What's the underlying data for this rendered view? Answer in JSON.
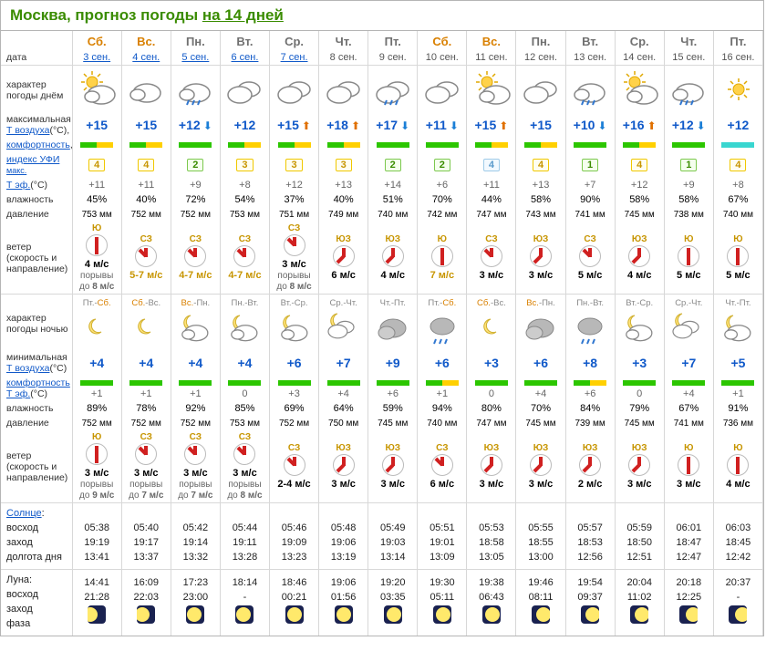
{
  "title_prefix": "Москва, прогноз погоды ",
  "title_link": "на 14 дней",
  "row_labels": {
    "date": "дата",
    "day_char": "характер погоды днём",
    "tmax1": "максимальная",
    "tmax2": "Т воздуха",
    "tmax3": "(°C),",
    "comfort": "комфортность",
    "uv1": "индекс УФИ",
    "uv2": "макс.",
    "teff": "Т эф.",
    "teff2": "(°C)",
    "hum": "влажность",
    "press": "давление",
    "wind": "ветер (скорость и направление)",
    "night_char": "характер погоды ночью",
    "tmin1": "минимальная",
    "tmin2": "Т воздуха",
    "tmin3": "(°C)",
    "comfort2": "комфортность",
    "teff_n": "Т эф.",
    "teff_n2": "(°C)",
    "hum_n": "влажность",
    "press_n": "давление",
    "wind_n": "ветер (скорость и направление)",
    "sun": "Солнце",
    "sun1": "восход",
    "sun2": "заход",
    "sun3": "долгота дня",
    "moon": "Луна:",
    "moon1": "восход",
    "moon2": "заход",
    "moon3": "фаза",
    "gust": "порывы до"
  },
  "days": [
    {
      "dow": "Сб.",
      "date": "3 сен.",
      "we": true,
      "link": true,
      "dicon": "sun-cloud",
      "tmax": "+15",
      "tarrow": "",
      "bar": "ygrn",
      "uv": "4",
      "uvcls": "",
      "teff": "+11",
      "hum": "45%",
      "press": "753 мм",
      "wdir": "Ю",
      "wrot": 180,
      "wspd": "4 м/с",
      "gust": "8 м/с",
      "nlab": "Пт.-",
      "nlab2": "Сб.",
      "nlab2cls": "w",
      "nicon": "moon-star",
      "tmin": "+4",
      "nbar": "green",
      "nteff": "+1",
      "nhum": "89%",
      "npress": "752 мм",
      "nwdir": "Ю",
      "nwrot": 180,
      "nwspd": "3 м/с",
      "ngust": "9 м/с",
      "sun_r": "05:38",
      "sun_s": "19:19",
      "sun_d": "13:41",
      "moon_r": "14:41",
      "moon_s": "21:28",
      "mph": "m1"
    },
    {
      "dow": "Вс.",
      "date": "4 сен.",
      "we": true,
      "link": true,
      "dicon": "cloud",
      "tmax": "+15",
      "tarrow": "",
      "bar": "ygrn",
      "uv": "4",
      "uvcls": "",
      "teff": "+11",
      "hum": "40%",
      "press": "752 мм",
      "wdir": "СЗ",
      "wrot": 315,
      "wspd": "5-7 м/с",
      "wycl": true,
      "gust": "",
      "nlab": "Сб.",
      "nlabcls": "w",
      "nlab2": "-Вс.",
      "nicon": "moon-star",
      "tmin": "+4",
      "nbar": "green",
      "nteff": "+1",
      "nhum": "78%",
      "npress": "752 мм",
      "nwdir": "СЗ",
      "nwrot": 315,
      "nwspd": "3 м/с",
      "ngust": "7 м/с",
      "sun_r": "05:40",
      "sun_s": "19:17",
      "sun_d": "13:37",
      "moon_r": "16:09",
      "moon_s": "22:03",
      "mph": "m2"
    },
    {
      "dow": "Пн.",
      "date": "5 сен.",
      "we": false,
      "link": true,
      "dicon": "rain",
      "tmax": "+12",
      "tarrow": "dn",
      "bar": "green",
      "uv": "2",
      "uvcls": "low",
      "teff": "+9",
      "hum": "72%",
      "press": "752 мм",
      "wdir": "СЗ",
      "wrot": 315,
      "wspd": "4-7 м/с",
      "wycl": true,
      "gust": "",
      "nlab": "Вс.",
      "nlabcls": "w",
      "nlab2": "-Пн.",
      "nicon": "moon-cloud",
      "tmin": "+4",
      "nbar": "green",
      "nteff": "+1",
      "nhum": "92%",
      "npress": "752 мм",
      "nwdir": "СЗ",
      "nwrot": 315,
      "nwspd": "3 м/с",
      "ngust": "7 м/с",
      "sun_r": "05:42",
      "sun_s": "19:14",
      "sun_d": "13:32",
      "moon_r": "17:23",
      "moon_s": "23:00",
      "mph": "m3"
    },
    {
      "dow": "Вт.",
      "date": "6 сен.",
      "we": false,
      "link": true,
      "dicon": "clouds",
      "tmax": "+12",
      "tarrow": "",
      "bar": "ygrn",
      "uv": "3",
      "uvcls": "",
      "teff": "+8",
      "hum": "54%",
      "press": "753 мм",
      "wdir": "СЗ",
      "wrot": 315,
      "wspd": "4-7 м/с",
      "wycl": true,
      "gust": "",
      "nlab": "Пн.-Вт.",
      "nicon": "moon-cloud",
      "tmin": "+4",
      "nbar": "green",
      "nteff": "0",
      "nhum": "85%",
      "npress": "753 мм",
      "nwdir": "СЗ",
      "nwrot": 315,
      "nwspd": "3 м/с",
      "ngust": "8 м/с",
      "sun_r": "05:44",
      "sun_s": "19:11",
      "sun_d": "13:28",
      "moon_r": "18:14",
      "moon_s": "-",
      "mph": "m3"
    },
    {
      "dow": "Ср.",
      "date": "7 сен.",
      "we": false,
      "link": true,
      "dicon": "clouds",
      "tmax": "+15",
      "tarrow": "up",
      "bar": "ygrn",
      "uv": "3",
      "uvcls": "",
      "teff": "+12",
      "hum": "37%",
      "press": "751 мм",
      "wdir": "СЗ",
      "wrot": 315,
      "wspd": "3 м/с",
      "gust": "8 м/с",
      "nlab": "Вт.-Ср.",
      "nicon": "moon-cloud",
      "tmin": "+6",
      "nbar": "green",
      "nteff": "+3",
      "nhum": "69%",
      "npress": "752 мм",
      "nwdir": "СЗ",
      "nwrot": 315,
      "nwspd": "2-4 м/с",
      "ngust": "",
      "sun_r": "05:46",
      "sun_s": "19:09",
      "sun_d": "13:23",
      "moon_r": "18:46",
      "moon_s": "00:21",
      "mph": "m4"
    },
    {
      "dow": "Чт.",
      "date": "8 сен.",
      "we": false,
      "link": false,
      "dicon": "clouds",
      "tmax": "+18",
      "tarrow": "up",
      "bar": "ygrn",
      "uv": "3",
      "uvcls": "",
      "teff": "+13",
      "hum": "40%",
      "press": "749 мм",
      "wdir": "ЮЗ",
      "wrot": 225,
      "wspd": "6 м/с",
      "gust": "",
      "nlab": "Ср.-Чт.",
      "nicon": "moon-clouds",
      "tmin": "+7",
      "nbar": "green",
      "nteff": "+4",
      "nhum": "64%",
      "npress": "750 мм",
      "nwdir": "ЮЗ",
      "nwrot": 225,
      "nwspd": "3 м/с",
      "ngust": "",
      "sun_r": "05:48",
      "sun_s": "19:06",
      "sun_d": "13:19",
      "moon_r": "19:06",
      "moon_s": "01:56",
      "mph": "m4"
    },
    {
      "dow": "Пт.",
      "date": "9 сен.",
      "we": false,
      "link": false,
      "dicon": "heavy-rain",
      "tmax": "+17",
      "tarrow": "dn",
      "bar": "green",
      "uv": "2",
      "uvcls": "low",
      "teff": "+14",
      "hum": "51%",
      "press": "740 мм",
      "wdir": "ЮЗ",
      "wrot": 225,
      "wspd": "4 м/с",
      "gust": "",
      "nlab": "Чт.-Пт.",
      "nicon": "clouds-only",
      "tmin": "+9",
      "nbar": "green",
      "nteff": "+6",
      "nhum": "59%",
      "npress": "745 мм",
      "nwdir": "ЮЗ",
      "nwrot": 225,
      "nwspd": "3 м/с",
      "ngust": "",
      "sun_r": "05:49",
      "sun_s": "19:03",
      "sun_d": "13:14",
      "moon_r": "19:20",
      "moon_s": "03:35",
      "mph": "m5"
    },
    {
      "dow": "Сб.",
      "date": "10 сен.",
      "we": true,
      "link": false,
      "dicon": "clouds",
      "tmax": "+11",
      "tarrow": "dn",
      "bar": "green",
      "uv": "2",
      "uvcls": "low",
      "teff": "+6",
      "hum": "70%",
      "press": "742 мм",
      "wdir": "Ю",
      "wrot": 180,
      "wspd": "7 м/с",
      "wycl": true,
      "gust": "",
      "nlab": "Пт.-",
      "nlab2": "Сб.",
      "nlab2cls": "w",
      "nicon": "rain-night",
      "tmin": "+6",
      "nbar": "ygrn",
      "nteff": "+1",
      "nhum": "94%",
      "npress": "740 мм",
      "nwdir": "СЗ",
      "nwrot": 315,
      "nwspd": "6 м/с",
      "ngust": "",
      "sun_r": "05:51",
      "sun_s": "19:01",
      "sun_d": "13:09",
      "moon_r": "19:30",
      "moon_s": "05:11",
      "mph": "m5"
    },
    {
      "dow": "Вс.",
      "date": "11 сен.",
      "we": true,
      "link": false,
      "dicon": "sun-cloud",
      "tmax": "+15",
      "tarrow": "up",
      "bar": "ygrn",
      "uv": "4",
      "uvcls": "pale",
      "teff": "+11",
      "hum": "44%",
      "press": "747 мм",
      "wdir": "СЗ",
      "wrot": 315,
      "wspd": "3 м/с",
      "gust": "",
      "nlab": "Сб.",
      "nlabcls": "w",
      "nlab2": "-Вс.",
      "nicon": "moon-star",
      "tmin": "+3",
      "nbar": "green",
      "nteff": "0",
      "nhum": "80%",
      "npress": "747 мм",
      "nwdir": "ЮЗ",
      "nwrot": 225,
      "nwspd": "3 м/с",
      "ngust": "",
      "sun_r": "05:53",
      "sun_s": "18:58",
      "sun_d": "13:05",
      "moon_r": "19:38",
      "moon_s": "06:43",
      "mph": "m5"
    },
    {
      "dow": "Пн.",
      "date": "12 сен.",
      "we": false,
      "link": false,
      "dicon": "clouds",
      "tmax": "+15",
      "tarrow": "",
      "bar": "ygrn",
      "uv": "4",
      "uvcls": "",
      "teff": "+13",
      "hum": "58%",
      "press": "743 мм",
      "wdir": "ЮЗ",
      "wrot": 225,
      "wspd": "3 м/с",
      "gust": "",
      "nlab": "Вс.",
      "nlabcls": "w",
      "nlab2": "-Пн.",
      "nicon": "clouds-only",
      "tmin": "+6",
      "nbar": "green",
      "nteff": "+4",
      "nhum": "70%",
      "npress": "745 мм",
      "nwdir": "ЮЗ",
      "nwrot": 225,
      "nwspd": "3 м/с",
      "ngust": "",
      "sun_r": "05:55",
      "sun_s": "18:55",
      "sun_d": "13:00",
      "moon_r": "19:46",
      "moon_s": "08:11",
      "mph": "m6"
    },
    {
      "dow": "Вт.",
      "date": "13 сен.",
      "we": false,
      "link": false,
      "dicon": "rain",
      "tmax": "+10",
      "tarrow": "dn",
      "bar": "green",
      "uv": "1",
      "uvcls": "low",
      "teff": "+7",
      "hum": "90%",
      "press": "741 мм",
      "wdir": "СЗ",
      "wrot": 315,
      "wspd": "5 м/с",
      "gust": "",
      "nlab": "Пн.-Вт.",
      "nicon": "rain-night",
      "tmin": "+8",
      "nbar": "ygrn",
      "nteff": "+6",
      "nhum": "84%",
      "npress": "739 мм",
      "nwdir": "ЮЗ",
      "nwrot": 225,
      "nwspd": "2 м/с",
      "ngust": "",
      "sun_r": "05:57",
      "sun_s": "18:53",
      "sun_d": "12:56",
      "moon_r": "19:54",
      "moon_s": "09:37",
      "mph": "m6"
    },
    {
      "dow": "Ср.",
      "date": "14 сен.",
      "we": false,
      "link": false,
      "dicon": "sun-cloud",
      "tmax": "+16",
      "tarrow": "up",
      "bar": "ygrn",
      "uv": "4",
      "uvcls": "",
      "teff": "+12",
      "hum": "58%",
      "press": "745 мм",
      "wdir": "ЮЗ",
      "wrot": 225,
      "wspd": "4 м/с",
      "gust": "",
      "nlab": "Вт.-Ср.",
      "nicon": "moon-cloud-sm",
      "tmin": "+3",
      "nbar": "green",
      "nteff": "0",
      "nhum": "79%",
      "npress": "745 мм",
      "nwdir": "ЮЗ",
      "nwrot": 225,
      "nwspd": "3 м/с",
      "ngust": "",
      "sun_r": "05:59",
      "sun_s": "18:50",
      "sun_d": "12:51",
      "moon_r": "20:04",
      "moon_s": "11:02",
      "mph": "m6"
    },
    {
      "dow": "Чт.",
      "date": "15 сен.",
      "we": false,
      "link": false,
      "dicon": "rain",
      "tmax": "+12",
      "tarrow": "dn",
      "bar": "green",
      "uv": "1",
      "uvcls": "low",
      "teff": "+9",
      "hum": "58%",
      "press": "738 мм",
      "wdir": "Ю",
      "wrot": 180,
      "wspd": "5 м/с",
      "gust": "",
      "nlab": "Ср.-Чт.",
      "nicon": "moon-clouds",
      "tmin": "+7",
      "nbar": "green",
      "nteff": "+4",
      "nhum": "67%",
      "npress": "741 мм",
      "nwdir": "Ю",
      "nwrot": 180,
      "nwspd": "3 м/с",
      "ngust": "",
      "sun_r": "06:01",
      "sun_s": "18:47",
      "sun_d": "12:47",
      "moon_r": "20:18",
      "moon_s": "12:25",
      "mph": "m7"
    },
    {
      "dow": "Пт.",
      "date": "16 сен.",
      "we": false,
      "link": false,
      "dicon": "sun",
      "tmax": "+12",
      "tarrow": "",
      "bar": "cyan",
      "uv": "4",
      "uvcls": "",
      "teff": "+8",
      "hum": "67%",
      "press": "740 мм",
      "wdir": "Ю",
      "wrot": 180,
      "wspd": "5 м/с",
      "gust": "",
      "nlab": "Чт.-Пт.",
      "nicon": "moon-cloud",
      "tmin": "+5",
      "nbar": "green",
      "nteff": "+1",
      "nhum": "91%",
      "npress": "736 мм",
      "nwdir": "Ю",
      "nwrot": 180,
      "nwspd": "4 м/с",
      "ngust": "",
      "sun_r": "06:03",
      "sun_s": "18:45",
      "sun_d": "12:42",
      "moon_r": "20:37",
      "moon_s": "-",
      "mph": "m7"
    }
  ]
}
